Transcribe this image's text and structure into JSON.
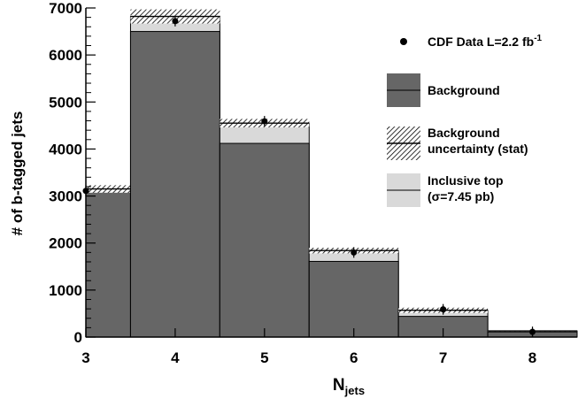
{
  "chart_data": {
    "type": "bar",
    "title": "",
    "xlabel": "N",
    "xlabel_subscript": "jets",
    "ylabel": "# of b-tagged jets",
    "ylim": [
      0,
      7000
    ],
    "yticks": [
      0,
      1000,
      2000,
      3000,
      4000,
      5000,
      6000,
      7000
    ],
    "categories": [
      "3",
      "4",
      "5",
      "6",
      "7",
      "8"
    ],
    "series": [
      {
        "name": "Background",
        "values": [
          3100,
          6500,
          4120,
          1610,
          440,
          110
        ]
      },
      {
        "name": "Background uncertainty (stat)",
        "values": [
          80,
          150,
          90,
          60,
          55,
          10
        ]
      },
      {
        "name": "Inclusive top (σ=7.45 pb)",
        "values": [
          3150,
          6820,
          4550,
          1840,
          570,
          130
        ]
      },
      {
        "name": "CDF Data L=2.2 fb-1",
        "values": [
          3110,
          6720,
          4590,
          1800,
          590,
          110
        ]
      }
    ],
    "legend": {
      "placement": "top-right",
      "data_label": "CDF Data L=2.2 fb",
      "data_label_sup": "-1",
      "background_label": "Background",
      "uncert_label_1": "Background",
      "uncert_label_2": "uncertainty (stat)",
      "top_label_1": "Inclusive top",
      "top_label_2": "(σ=7.45 pb)"
    },
    "colors": {
      "background": "#666666",
      "inclusive_top": "#d9d9d9",
      "data": "#000000"
    },
    "grid": false
  }
}
